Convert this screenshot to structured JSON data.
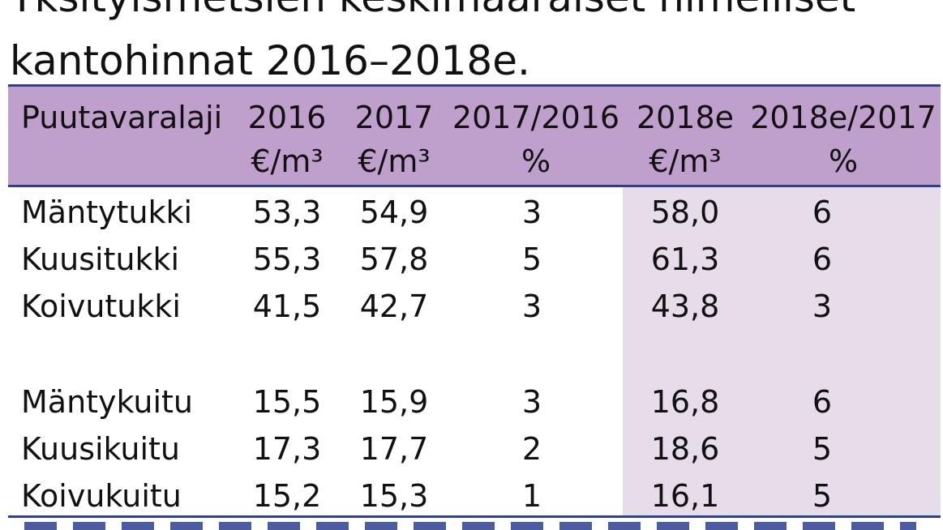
{
  "title": {
    "line1": "Yksityismetsien keskimääräiset nimelliset",
    "line2": "kantohinnat 2016–2018e."
  },
  "header": {
    "col1": {
      "top": "Puutavaralaji",
      "bottom": ""
    },
    "col2": {
      "top": "2016",
      "bottom": "€/m³"
    },
    "col3": {
      "top": "2017",
      "bottom": "€/m³"
    },
    "col4": {
      "top": "2017/2016",
      "bottom": "%"
    },
    "col5": {
      "top": "2018e",
      "bottom": "€/m³"
    },
    "col6": {
      "top": "2018e/2017",
      "bottom": "%"
    }
  },
  "rows": [
    {
      "name": "Mäntytukki",
      "v2016": "53,3",
      "v2017": "54,9",
      "p1": "3",
      "v2018": "58,0",
      "p2": "6"
    },
    {
      "name": "Kuusitukki",
      "v2016": "55,3",
      "v2017": "57,8",
      "p1": "5",
      "v2018": "61,3",
      "p2": "6"
    },
    {
      "name": "Koivutukki",
      "v2016": "41,5",
      "v2017": "42,7",
      "p1": "3",
      "v2018": "43,8",
      "p2": "3"
    },
    {
      "name": "Mäntykuitu",
      "v2016": "15,5",
      "v2017": "15,9",
      "p1": "3",
      "v2018": "16,8",
      "p2": "6"
    },
    {
      "name": "Kuusikuitu",
      "v2016": "17,3",
      "v2017": "17,7",
      "p1": "2",
      "v2018": "18,6",
      "p2": "5"
    },
    {
      "name": "Koivukuitu",
      "v2016": "15,2",
      "v2017": "15,3",
      "p1": "1",
      "v2018": "16,1",
      "p2": "5"
    }
  ],
  "colors": {
    "header_bg": "#bfa0cc",
    "highlight_bg": "#e6dcea",
    "rule": "#2d3f8f"
  }
}
